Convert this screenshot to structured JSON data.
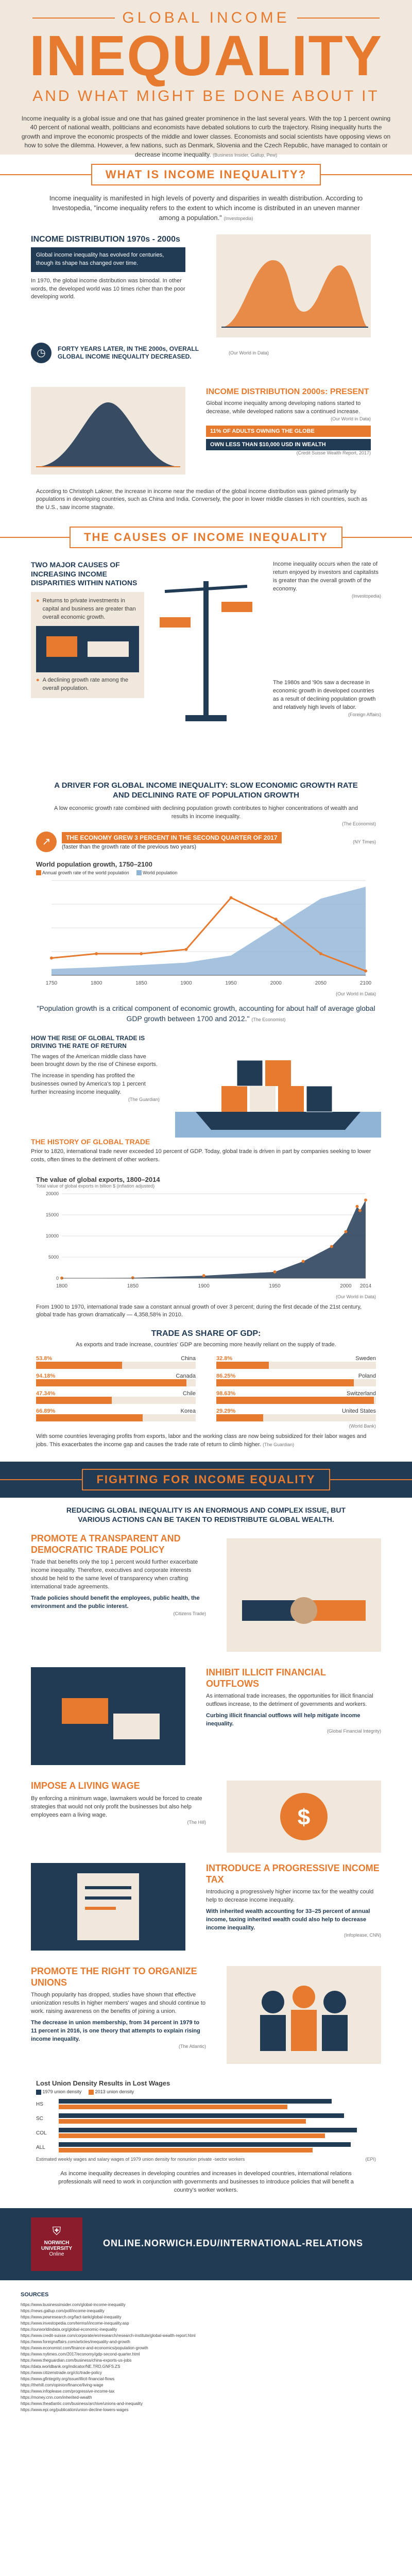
{
  "header": {
    "kicker": "GLOBAL INCOME",
    "title": "INEQUALITY",
    "subtitle": "AND WHAT MIGHT BE DONE ABOUT IT",
    "intro": "Income inequality is a global issue and one that has gained greater prominence in the last several years. With the top 1 percent owning 40 percent of national wealth, politicians and economists have debated solutions to curb the trajectory. Rising inequality hurts the growth and improve the economic prospects of the middle and lower classes. Economists and social scientists have opposing views on how to solve the dilemma. However, a few nations, such as Denmark, Slovenia and the Czech Republic, have managed to contain or decrease income inequality.",
    "intro_source": "(Business Insider, Gallup, Pew)"
  },
  "s1": {
    "banner": "WHAT IS INCOME INEQUALITY?",
    "lead": "Income inequality is manifested in high levels of poverty and disparities in wealth distribution. According to Investopedia, \"income inequality refers to the extent to which income is distributed in an uneven manner among a population.\"",
    "lead_source": "(Investopedia)",
    "dist_title": "INCOME DISTRIBUTION 1970s - 2000s",
    "dist_p1": "Global income inequality has evolved for centuries, though its shape has changed over time.",
    "dist_p2": "In 1970, the global income distribution was bimodal. In other words, the developed world was 10 times richer than the poor developing world.",
    "forty_years": "FORTY YEARS LATER, IN THE 2000s, OVERALL GLOBAL INCOME INEQUALITY DECREASED.",
    "forty_source": "(Our World in Data)",
    "present_title": "INCOME DISTRIBUTION 2000s: PRESENT",
    "present_p": "Global income inequality among developing nations started to decrease, while developed nations saw a continued increase.",
    "present_source": "(Our World in Data)",
    "stat1": "11% OF ADULTS OWNING THE GLOBE",
    "stat2": "OWN LESS THAN $10,000 USD IN WEALTH",
    "stat2_source": "(Credit Suisse Wealth Report, 2017)",
    "milanovic": "According to Christoph Lakner, the increase in income near the median of the global income distribution was gained primarily by populations in developing countries, such as China and India. Conversely, the poor in lower middle classes in rich countries, such as the U.S., saw income stagnate."
  },
  "s2": {
    "banner": "THE CAUSES OF INCOME INEQUALITY",
    "major_title": "TWO MAJOR CAUSES OF INCREASING INCOME DISPARITIES WITHIN NATIONS",
    "cause1": "Returns to private investments in capital and business are greater than overall economic growth.",
    "cause2": "A declining growth rate among the overall population.",
    "piketty_p": "Income inequality occurs when the rate of return enjoyed by investors and capitalists is greater than the overall growth of the economy.",
    "piketty_source": "(Investopedia)",
    "decrease_p": "The 1980s and '90s saw a decrease in economic growth in developed countries as a result of declining population growth and relatively high levels of labor.",
    "decrease_source": "(Foreign Affairs)",
    "driver_title": "A DRIVER FOR GLOBAL INCOME INEQUALITY: SLOW ECONOMIC GROWTH RATE AND DECLINING RATE OF POPULATION GROWTH",
    "driver_p": "A low economic growth rate combined with declining population growth contributes to higher concentrations of wealth and results in income inequality.",
    "driver_source": "(The Economist)",
    "q2_title": "THE ECONOMY GREW 3 PERCENT IN THE SECOND QUARTER OF 2017",
    "q2_sub": "(faster than the growth rate of the previous two years)",
    "q2_source": "(NY Times)",
    "pop_chart_title": "World population growth, 1750–2100",
    "pop_chart_source": "(Our World in Data)",
    "quote": "\"Population growth is a critical component of economic growth, accounting for about half of average global GDP growth between 1700 and 2012.\"",
    "quote_source": "(The Economist)",
    "china_title": "HOW THE RISE OF GLOBAL TRADE IS DRIVING THE RATE OF RETURN",
    "china_p1": "The wages of the American middle class have been brought down by the rise of Chinese exports.",
    "china_p2": "The increase in spending has profited the businesses owned by America's top 1 percent further increasing income inequality.",
    "china_source": "(The Guardian)",
    "history_title": "THE HISTORY OF GLOBAL TRADE",
    "history_p": "Prior to 1820, international trade never exceeded 10 percent of GDP. Today, global trade is driven in part by companies seeking to lower costs, often times to the detriment of other workers.",
    "export_chart_title": "The value of global exports, 1800–2014",
    "export_chart_note": "Total value of global exports in billion $ (inflation adjusted)",
    "export_chart_source": "(Our World in Data)",
    "export_p": "From 1900 to 1970, international trade saw a constant annual growth of over 3 percent; during the first decade of the 21st century, global trade has grown dramatically — 4,358,58% in 2010.",
    "trade_title": "TRADE AS SHARE OF GDP:",
    "trade_p": "As exports and trade increase, countries' GDP are becoming more heavily reliant on the supply of trade.",
    "trade_source": "(World Bank)",
    "trade_bottom": "With some countries leveraging profits from exports, labor and the working class are now being subsidized for their labor wages and jobs. This exacerbates the income gap and causes the trade rate of return to climb higher.",
    "trade_bottom_source": "(The Guardian)"
  },
  "trade_shares": [
    {
      "value": "53.8%",
      "country": "China",
      "fraction": 0.538
    },
    {
      "value": "32.8%",
      "country": "Sweden",
      "fraction": 0.328
    },
    {
      "value": "94.18%",
      "country": "Canada",
      "fraction": 0.9418
    },
    {
      "value": "86.25%",
      "country": "Poland",
      "fraction": 0.8625
    },
    {
      "value": "47.34%",
      "country": "Chile",
      "fraction": 0.4734
    },
    {
      "value": "98.63%",
      "country": "Switzerland",
      "fraction": 0.9863
    },
    {
      "value": "66.89%",
      "country": "Korea",
      "fraction": 0.6689
    },
    {
      "value": "29.29%",
      "country": "United States",
      "fraction": 0.2929
    }
  ],
  "s3": {
    "banner": "FIGHTING FOR INCOME EQUALITY",
    "lead": "REDUCING GLOBAL INEQUALITY IS AN ENORMOUS AND COMPLEX ISSUE, BUT VARIOUS ACTIONS CAN BE TAKEN TO REDISTRIBUTE GLOBAL WEALTH.",
    "a1_title": "PROMOTE A TRANSPARENT AND DEMOCRATIC TRADE POLICY",
    "a1_p": "Trade that benefits only the top 1 percent would further exacerbate income inequality. Therefore, executives and corporate interests should be held to the same level of transparency when crafting international trade agreements.",
    "a1_highlight": "Trade policies should benefit the employees, public health, the environment and the public interest.",
    "a1_source": "(Citizens Trade)",
    "a2_title": "INHIBIT ILLICIT FINANCIAL OUTFLOWS",
    "a2_p": "As international trade increases, the opportunities for illicit financial outflows increase, to the detriment of governments and workers.",
    "a2_highlight": "Curbing illicit financial outflows will help mitigate income inequality.",
    "a2_source": "(Global Financial Integrity)",
    "a3_title": "IMPOSE A LIVING WAGE",
    "a3_p": "By enforcing a minimum wage, lawmakers would be forced to create strategies that would not only profit the businesses but also help employees earn a living wage.",
    "a3_source": "(The Hill)",
    "a4_title": "INTRODUCE A PROGRESSIVE INCOME TAX",
    "a4_p": "Introducing a progressively higher income tax for the wealthy could help to decrease income inequality.",
    "a4_highlight": "With inherited wealth accounting for 33–25 percent of annual income, taxing inherited wealth could also help to decrease income inequality.",
    "a4_source": "(Infoplease, CNN)",
    "a5_title": "PROMOTE THE RIGHT TO ORGANIZE UNIONS",
    "a5_p": "Though popularity has dropped, studies have shown that effective unionization results in higher members' wages and should continue to work. raising awareness on the benefits of joining a union.",
    "a5_highlight": "The decrease in union membership, from 34 percent in 1979 to 11 percent in 2016, is one theory that attempts to explain rising income inequality.",
    "a5_source": "(The Atlantic)",
    "union_chart_title": "Lost Union Density Results in Lost Wages",
    "union_legend_1": "1979 union density",
    "union_legend_2": "2013 union density",
    "union_note": "Estimated weekly wages and salary wages of 1979 union density for nonunion private -sector workers",
    "union_source": "(EPI)",
    "closing": "As income inequality decreases in developing countries and increases in developed countries, international relations professionals will need to work in conjunction with governments and businesses to introduce policies that will benefit a country's worker workers."
  },
  "union_rows": [
    {
      "label": "HS",
      "v1979": 0.86,
      "v2013": 0.72
    },
    {
      "label": "SC",
      "v1979": 0.9,
      "v2013": 0.78
    },
    {
      "label": "COL",
      "v1979": 0.94,
      "v2013": 0.84
    },
    {
      "label": "ALL",
      "v1979": 0.92,
      "v2013": 0.8
    }
  ],
  "footer": {
    "university": "NORWICH UNIVERSITY",
    "university_sub": "Online",
    "url": "ONLINE.NORWICH.EDU/INTERNATIONAL-RELATIONS"
  },
  "sources": {
    "title": "SOURCES",
    "lines": [
      "https://www.businessinsider.com/global-income-inequality",
      "https://news.gallup.com/poll/income-inequality",
      "https://www.pewresearch.org/fact-tank/global-inequality",
      "https://www.investopedia.com/terms/i/income-inequality.asp",
      "https://ourworldindata.org/global-economic-inequality",
      "https://www.credit-suisse.com/corporate/en/research/research-institute/global-wealth-report.html",
      "https://www.foreignaffairs.com/articles/inequality-and-growth",
      "https://www.economist.com/finance-and-economics/population-growth",
      "https://www.nytimes.com/2017/economy/gdp-second-quarter.html",
      "https://www.theguardian.com/business/china-exports-us-jobs",
      "https://data.worldbank.org/indicator/NE.TRD.GNFS.ZS",
      "https://www.citizenstrade.org/ctc/trade-policy",
      "https://www.gfintegrity.org/issue/illicit-financial-flows",
      "https://thehill.com/opinion/finance/living-wage",
      "https://www.infoplease.com/progressive-income-tax",
      "https://money.cnn.com/inherited-wealth",
      "https://www.theatlantic.com/business/archive/unions-and-inequality",
      "https://www.epi.org/publication/union-decline-lowers-wages"
    ]
  },
  "chart_data": [
    {
      "type": "area",
      "title": "World population growth, 1750–2100",
      "x": [
        1750,
        1800,
        1850,
        1900,
        1950,
        2000,
        2050,
        2100
      ],
      "series": [
        {
          "name": "Annual growth rate of the world population",
          "values": [
            0.4,
            0.5,
            0.5,
            0.6,
            1.8,
            1.3,
            0.5,
            0.1
          ]
        },
        {
          "name": "World population",
          "values": [
            0.8,
            1.0,
            1.3,
            1.6,
            2.5,
            6.1,
            9.7,
            11.2
          ]
        }
      ],
      "ylabel": "",
      "xlabel": ""
    },
    {
      "type": "line",
      "title": "The value of global exports, 1800–2014",
      "x": [
        1800,
        1850,
        1900,
        1950,
        1970,
        1990,
        2000,
        2008,
        2010,
        2014
      ],
      "series": [
        {
          "name": "Total value of global exports",
          "values": [
            30,
            100,
            600,
            1500,
            4000,
            7500,
            11000,
            17000,
            16000,
            18500
          ]
        }
      ],
      "ylim": [
        0,
        20000
      ]
    }
  ]
}
